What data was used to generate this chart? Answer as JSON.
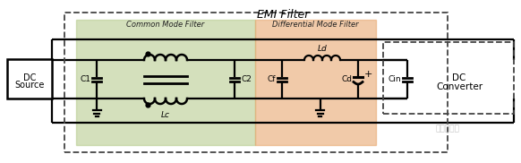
{
  "bg_color": "#ffffff",
  "common_mode_bg": "#b8cc90",
  "diff_mode_bg": "#e8a870",
  "title": "EMI Filter",
  "common_mode_label": "Common Mode Filter",
  "diff_mode_label": "Differential Mode Filter",
  "figsize": [
    5.82,
    1.82
  ],
  "dpi": 100
}
